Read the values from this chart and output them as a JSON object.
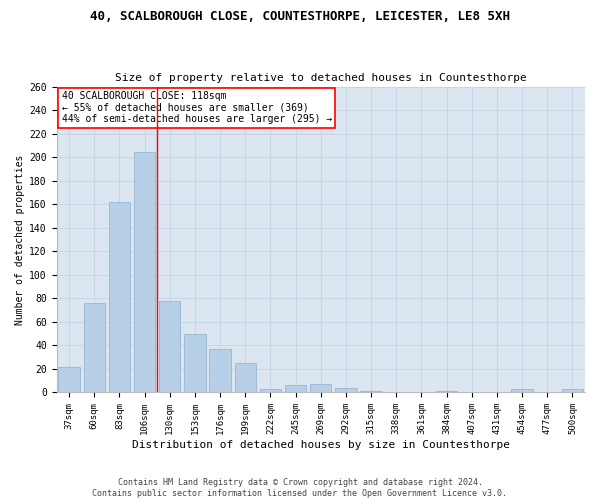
{
  "title": "40, SCALBOROUGH CLOSE, COUNTESTHORPE, LEICESTER, LE8 5XH",
  "subtitle": "Size of property relative to detached houses in Countesthorpe",
  "xlabel": "Distribution of detached houses by size in Countesthorpe",
  "ylabel": "Number of detached properties",
  "bar_color": "#b8cfe8",
  "bar_edge_color": "#8ab0d0",
  "grid_color": "#c8d4e8",
  "background_color": "#dce6f0",
  "categories": [
    "37sqm",
    "60sqm",
    "83sqm",
    "106sqm",
    "130sqm",
    "153sqm",
    "176sqm",
    "199sqm",
    "222sqm",
    "245sqm",
    "269sqm",
    "292sqm",
    "315sqm",
    "338sqm",
    "361sqm",
    "384sqm",
    "407sqm",
    "431sqm",
    "454sqm",
    "477sqm",
    "500sqm"
  ],
  "values": [
    22,
    76,
    162,
    204,
    78,
    50,
    37,
    25,
    3,
    6,
    7,
    4,
    1,
    0,
    0,
    1,
    0,
    0,
    3,
    0,
    3
  ],
  "property_label": "40 SCALBOROUGH CLOSE: 118sqm",
  "annotation_line1": "← 55% of detached houses are smaller (369)",
  "annotation_line2": "44% of semi-detached houses are larger (295) →",
  "vline_x": 3.5,
  "ylim": [
    0,
    260
  ],
  "yticks": [
    0,
    20,
    40,
    60,
    80,
    100,
    120,
    140,
    160,
    180,
    200,
    220,
    240,
    260
  ],
  "footer_line1": "Contains HM Land Registry data © Crown copyright and database right 2024.",
  "footer_line2": "Contains public sector information licensed under the Open Government Licence v3.0."
}
